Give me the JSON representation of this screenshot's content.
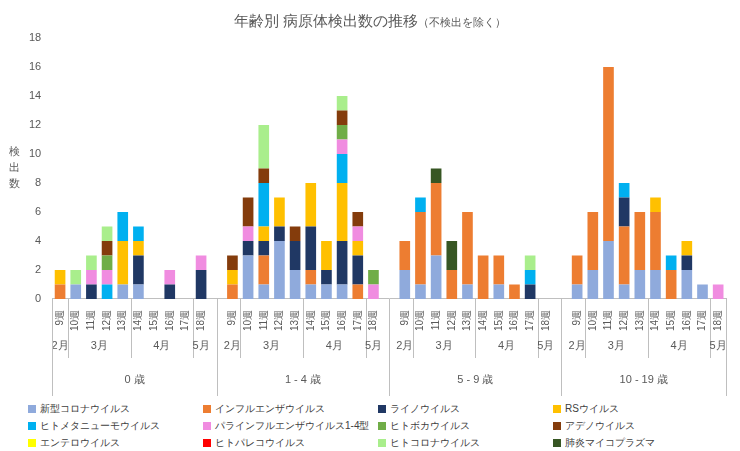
{
  "chart_data": {
    "type": "bar",
    "title": "年齢別 病原体検出数の推移",
    "subtitle": "（不検出を除く）",
    "y_label": "検出数",
    "stacked": true,
    "grid": false,
    "legend": "bottom",
    "ylim": [
      0,
      18
    ],
    "yticks": [
      0,
      2,
      4,
      6,
      8,
      10,
      12,
      14,
      16,
      18
    ],
    "categories": [
      "9週",
      "10週",
      "11週",
      "12週",
      "13週",
      "14週",
      "15週",
      "16週",
      "17週",
      "18週",
      null,
      "9週",
      "10週",
      "11週",
      "12週",
      "13週",
      "14週",
      "15週",
      "16週",
      "17週",
      "18週",
      null,
      "9週",
      "10週",
      "11週",
      "12週",
      "13週",
      "14週",
      "15週",
      "16週",
      "17週",
      "18週",
      null,
      "9週",
      "10週",
      "11週",
      "12週",
      "13週",
      "14週",
      "15週",
      "16週",
      "17週",
      "18週"
    ],
    "x_groups": [
      {
        "label": "0 歳",
        "months": [
          {
            "label": "2月",
            "size": 1
          },
          {
            "label": "3月",
            "size": 4
          },
          {
            "label": "4月",
            "size": 4
          },
          {
            "label": "5月",
            "size": 1
          }
        ]
      },
      {
        "label": "1 - 4 歳",
        "months": [
          {
            "label": "2月",
            "size": 1
          },
          {
            "label": "3月",
            "size": 4
          },
          {
            "label": "4月",
            "size": 4
          },
          {
            "label": "5月",
            "size": 1
          }
        ]
      },
      {
        "label": "5 - 9 歳",
        "months": [
          {
            "label": "2月",
            "size": 1
          },
          {
            "label": "3月",
            "size": 4
          },
          {
            "label": "4月",
            "size": 4
          },
          {
            "label": "5月",
            "size": 1
          }
        ]
      },
      {
        "label": "10 - 19 歳",
        "months": [
          {
            "label": "2月",
            "size": 1
          },
          {
            "label": "3月",
            "size": 4
          },
          {
            "label": "4月",
            "size": 4
          },
          {
            "label": "5月",
            "size": 1
          }
        ]
      }
    ],
    "series": [
      {
        "name": "新型コロナウイルス",
        "color": "#8faadc",
        "values": [
          0,
          1,
          0,
          0,
          1,
          1,
          0,
          0,
          0,
          0,
          null,
          0,
          3,
          1,
          4,
          2,
          1,
          1,
          1,
          0,
          0,
          null,
          2,
          1,
          3,
          0,
          1,
          0,
          1,
          0,
          0,
          0,
          null,
          1,
          2,
          4,
          1,
          2,
          2,
          0,
          2,
          1,
          0
        ]
      },
      {
        "name": "インフルエンザウイルス",
        "color": "#ed7d31",
        "values": [
          1,
          0,
          0,
          0,
          0,
          0,
          0,
          0,
          0,
          0,
          null,
          1,
          0,
          2,
          0,
          0,
          1,
          0,
          0,
          1,
          0,
          null,
          2,
          5,
          5,
          2,
          5,
          3,
          2,
          1,
          0,
          0,
          null,
          2,
          4,
          12,
          4,
          4,
          4,
          2,
          0,
          0,
          0
        ]
      },
      {
        "name": "ライノウイルス",
        "color": "#203864",
        "values": [
          0,
          0,
          1,
          0,
          0,
          2,
          0,
          1,
          0,
          2,
          null,
          0,
          1,
          1,
          1,
          2,
          3,
          1,
          3,
          2,
          0,
          null,
          0,
          0,
          0,
          0,
          0,
          0,
          0,
          0,
          1,
          0,
          null,
          0,
          0,
          0,
          2,
          0,
          0,
          0,
          1,
          0,
          0
        ]
      },
      {
        "name": "RSウイルス",
        "color": "#ffc000",
        "values": [
          1,
          0,
          0,
          0,
          3,
          1,
          0,
          0,
          0,
          0,
          null,
          1,
          0,
          1,
          2,
          0,
          3,
          2,
          4,
          1,
          0,
          null,
          0,
          0,
          0,
          0,
          0,
          0,
          0,
          0,
          0,
          0,
          null,
          0,
          0,
          0,
          0,
          0,
          1,
          0,
          1,
          0,
          0
        ]
      },
      {
        "name": "ヒトメタニューモウイルス",
        "color": "#00b0f0",
        "values": [
          0,
          0,
          0,
          1,
          2,
          1,
          0,
          0,
          0,
          0,
          null,
          0,
          0,
          3,
          0,
          0,
          0,
          0,
          2,
          0,
          0,
          null,
          0,
          1,
          0,
          0,
          0,
          0,
          0,
          0,
          1,
          0,
          null,
          0,
          0,
          0,
          1,
          0,
          0,
          1,
          0,
          0,
          0
        ]
      },
      {
        "name": "パラインフルエンザウイルス1-4型",
        "color": "#f08ce0",
        "values": [
          0,
          0,
          1,
          1,
          0,
          0,
          0,
          1,
          0,
          1,
          null,
          0,
          1,
          0,
          0,
          0,
          0,
          0,
          1,
          1,
          1,
          null,
          0,
          0,
          0,
          0,
          0,
          0,
          0,
          0,
          0,
          0,
          null,
          0,
          0,
          0,
          0,
          0,
          0,
          0,
          0,
          0,
          1
        ]
      },
      {
        "name": "ヒトボカウイルス",
        "color": "#70ad47",
        "values": [
          0,
          0,
          0,
          1,
          0,
          0,
          0,
          0,
          0,
          0,
          null,
          0,
          0,
          0,
          0,
          0,
          0,
          0,
          1,
          0,
          1,
          null,
          0,
          0,
          0,
          0,
          0,
          0,
          0,
          0,
          0,
          0,
          null,
          0,
          0,
          0,
          0,
          0,
          0,
          0,
          0,
          0,
          0
        ]
      },
      {
        "name": "アデノウイルス",
        "color": "#843c0c",
        "values": [
          0,
          0,
          0,
          1,
          0,
          0,
          0,
          0,
          0,
          0,
          null,
          1,
          2,
          1,
          0,
          1,
          0,
          0,
          1,
          1,
          0,
          null,
          0,
          0,
          0,
          0,
          0,
          0,
          0,
          0,
          0,
          0,
          null,
          0,
          0,
          0,
          0,
          0,
          0,
          0,
          0,
          0,
          0
        ]
      },
      {
        "name": "エンテロウイルス",
        "color": "#ffff00",
        "values": [
          0,
          0,
          0,
          0,
          0,
          0,
          0,
          0,
          0,
          0,
          null,
          0,
          0,
          0,
          0,
          0,
          0,
          0,
          0,
          0,
          0,
          null,
          0,
          0,
          0,
          0,
          0,
          0,
          0,
          0,
          0,
          0,
          null,
          0,
          0,
          0,
          0,
          0,
          0,
          0,
          0,
          0,
          0
        ]
      },
      {
        "name": "ヒトパレコウイルス",
        "color": "#ff0000",
        "values": [
          0,
          0,
          0,
          0,
          0,
          0,
          0,
          0,
          0,
          0,
          null,
          0,
          0,
          0,
          0,
          0,
          0,
          0,
          0,
          0,
          0,
          null,
          0,
          0,
          0,
          0,
          0,
          0,
          0,
          0,
          0,
          0,
          null,
          0,
          0,
          0,
          0,
          0,
          0,
          0,
          0,
          0,
          0
        ]
      },
      {
        "name": "ヒトコロナウイルス",
        "color": "#a9ee8c",
        "values": [
          0,
          1,
          1,
          1,
          0,
          0,
          0,
          0,
          0,
          0,
          null,
          0,
          0,
          3,
          0,
          0,
          0,
          0,
          1,
          0,
          0,
          null,
          0,
          0,
          0,
          0,
          0,
          0,
          0,
          0,
          1,
          0,
          null,
          0,
          0,
          0,
          0,
          0,
          0,
          0,
          0,
          0,
          0
        ]
      },
      {
        "name": "肺炎マイコプラズマ",
        "color": "#375623",
        "values": [
          0,
          0,
          0,
          0,
          0,
          0,
          0,
          0,
          0,
          0,
          null,
          0,
          0,
          0,
          0,
          0,
          0,
          0,
          0,
          0,
          0,
          null,
          0,
          0,
          1,
          2,
          0,
          0,
          0,
          0,
          0,
          0,
          null,
          0,
          0,
          0,
          0,
          0,
          0,
          0,
          0,
          0,
          0
        ]
      }
    ]
  }
}
